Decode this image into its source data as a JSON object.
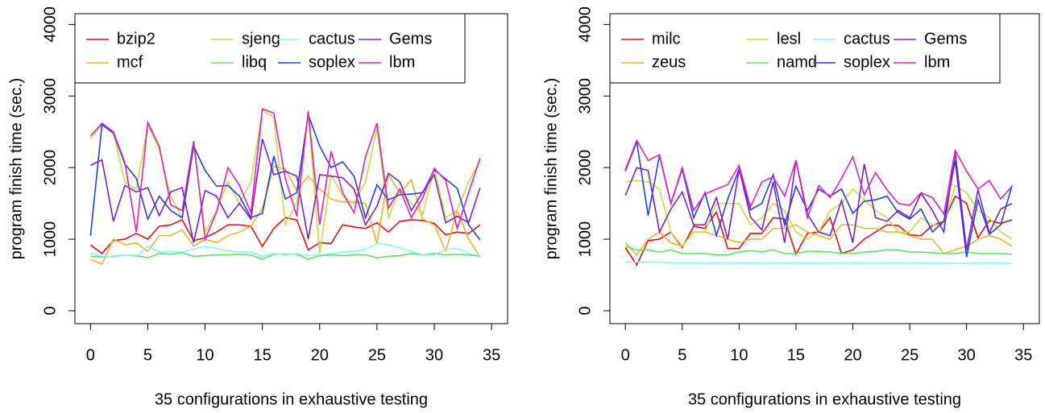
{
  "chart_data": [
    {
      "type": "line",
      "x_label": "35 configurations in exhaustive testing",
      "y_label": "program finish time (sec.)",
      "x": [
        0,
        1,
        2,
        3,
        4,
        5,
        6,
        7,
        8,
        9,
        10,
        11,
        12,
        13,
        14,
        15,
        16,
        17,
        18,
        19,
        20,
        21,
        22,
        23,
        24,
        25,
        26,
        27,
        28,
        29,
        30,
        31,
        32,
        33,
        34
      ],
      "xlim": [
        -1.36,
        36.4
      ],
      "ylim": [
        -180,
        4150
      ],
      "xticks": [
        0,
        5,
        10,
        15,
        20,
        25,
        30,
        35
      ],
      "yticks": [
        0,
        1000,
        2000,
        3000,
        4000
      ],
      "legend": "top-left",
      "series": [
        {
          "name": "bzip2",
          "color": "#e01010",
          "values": [
            920,
            800,
            980,
            1000,
            1080,
            1000,
            1180,
            1200,
            1270,
            980,
            1020,
            1100,
            1200,
            1200,
            1180,
            900,
            1150,
            1300,
            1270,
            850,
            950,
            940,
            1200,
            1170,
            1150,
            1230,
            1100,
            1250,
            1270,
            1260,
            1220,
            1060,
            1100,
            1080,
            1200
          ]
        },
        {
          "name": "mcf",
          "color": "#f0b030",
          "values": [
            720,
            650,
            1000,
            920,
            950,
            830,
            1050,
            1050,
            1130,
            900,
            1000,
            950,
            1050,
            1100,
            1180,
            1430,
            2020,
            1980,
            1680,
            1880,
            1700,
            1560,
            1520,
            1520,
            1500,
            940,
            1900,
            1640,
            1830,
            1280,
            1200,
            830,
            1400,
            1000,
            750
          ]
        },
        {
          "name": "sjeng",
          "color": "#c0e040",
          "values": [
            2400,
            2600,
            2480,
            1800,
            1700,
            2600,
            2250,
            1600,
            1300,
            2300,
            1100,
            1400,
            1800,
            1500,
            1800,
            2800,
            2700,
            1200,
            1500,
            2750,
            800,
            1900,
            1600,
            1500,
            1800,
            2550,
            1300,
            1700,
            1500,
            1350,
            2000,
            1300,
            1400,
            1800,
            2100
          ]
        },
        {
          "name": "libq",
          "color": "#60e060",
          "values": [
            760,
            750,
            760,
            780,
            770,
            740,
            800,
            790,
            810,
            760,
            770,
            780,
            780,
            790,
            780,
            720,
            790,
            790,
            790,
            720,
            770,
            780,
            770,
            780,
            780,
            740,
            760,
            770,
            800,
            780,
            800,
            780,
            790,
            780,
            760
          ]
        },
        {
          "name": "cactus",
          "color": "#80f8f8",
          "values": [
            800,
            760,
            750,
            780,
            760,
            900,
            820,
            830,
            820,
            860,
            900,
            870,
            840,
            820,
            820,
            760,
            800,
            780,
            800,
            770,
            780,
            800,
            820,
            830,
            860,
            940,
            920,
            880,
            830,
            780,
            780,
            860,
            870,
            800,
            770
          ]
        },
        {
          "name": "soplex",
          "color": "#2040e0",
          "values": [
            1050,
            2600,
            2480,
            2050,
            1850,
            1280,
            1600,
            1400,
            1300,
            2300,
            1960,
            1740,
            1750,
            1600,
            1300,
            1360,
            2160,
            1560,
            1650,
            2740,
            2300,
            2000,
            2080,
            1880,
            1300,
            1760,
            1550,
            1620,
            1630,
            1650,
            1970,
            1840,
            1710,
            1200,
            990
          ]
        },
        {
          "name": "Gems",
          "color": "#8020c0",
          "values": [
            2030,
            2110,
            1250,
            1750,
            1660,
            1720,
            1330,
            1660,
            1720,
            950,
            1680,
            1600,
            1300,
            1500,
            1280,
            2400,
            1900,
            1950,
            1880,
            1000,
            1900,
            1880,
            1860,
            1700,
            1200,
            1460,
            1920,
            1800,
            1400,
            1660,
            1900,
            1230,
            1320,
            1230,
            1720
          ]
        },
        {
          "name": "lbm",
          "color": "#e020c0",
          "values": [
            2440,
            2620,
            2500,
            2070,
            1100,
            2630,
            2300,
            1480,
            1400,
            2370,
            1000,
            1380,
            2000,
            1750,
            1370,
            2820,
            2760,
            1850,
            1320,
            2790,
            1200,
            2230,
            1650,
            1370,
            2150,
            2620,
            1430,
            1700,
            1300,
            1580,
            1990,
            1820,
            1150,
            1650,
            2130
          ]
        }
      ]
    },
    {
      "type": "line",
      "x_label": "35 configurations in exhaustive testing",
      "y_label": "program finish time (sec.)",
      "x": [
        0,
        1,
        2,
        3,
        4,
        5,
        6,
        7,
        8,
        9,
        10,
        11,
        12,
        13,
        14,
        15,
        16,
        17,
        18,
        19,
        20,
        21,
        22,
        23,
        24,
        25,
        26,
        27,
        28,
        29,
        30,
        31,
        32,
        33,
        34
      ],
      "xlim": [
        -1.36,
        36.4
      ],
      "ylim": [
        -180,
        4150
      ],
      "xticks": [
        0,
        5,
        10,
        15,
        20,
        25,
        30,
        35
      ],
      "yticks": [
        0,
        1000,
        2000,
        3000,
        4000
      ],
      "legend": "top-left",
      "series": [
        {
          "name": "milc",
          "color": "#e01010",
          "values": [
            880,
            640,
            980,
            1000,
            1100,
            880,
            1180,
            1150,
            1380,
            870,
            870,
            1080,
            1080,
            1300,
            1280,
            790,
            1080,
            1100,
            1300,
            800,
            850,
            1000,
            1100,
            1200,
            1190,
            1060,
            1050,
            1190,
            1250,
            1600,
            1500,
            1020,
            1260,
            1220,
            1270
          ]
        },
        {
          "name": "zeus",
          "color": "#f0b030",
          "values": [
            950,
            780,
            1000,
            1100,
            950,
            900,
            1100,
            1100,
            1050,
            1000,
            950,
            1000,
            1000,
            1150,
            1150,
            1200,
            1100,
            1050,
            1000,
            1200,
            1200,
            1150,
            1150,
            1100,
            1100,
            1050,
            1000,
            1000,
            800,
            850,
            900,
            1000,
            1050,
            1000,
            900
          ]
        },
        {
          "name": "lesl",
          "color": "#c0e040",
          "values": [
            1800,
            1820,
            1800,
            1700,
            1100,
            900,
            1100,
            1100,
            1500,
            1500,
            1500,
            1200,
            1300,
            1500,
            1400,
            1100,
            1000,
            1100,
            1400,
            1500,
            1700,
            1550,
            1400,
            1300,
            1100,
            1100,
            1300,
            1200,
            1200,
            1750,
            1650,
            1400,
            1300,
            1100,
            1000
          ]
        },
        {
          "name": "namd",
          "color": "#60e060",
          "values": [
            900,
            850,
            850,
            820,
            850,
            800,
            800,
            800,
            780,
            780,
            820,
            840,
            820,
            850,
            800,
            800,
            830,
            830,
            820,
            800,
            800,
            820,
            830,
            850,
            850,
            820,
            820,
            810,
            800,
            800,
            820,
            800,
            800,
            800,
            790
          ]
        },
        {
          "name": "cactus",
          "color": "#80f8f8",
          "values": [
            680,
            680,
            680,
            680,
            670,
            670,
            670,
            670,
            670,
            670,
            670,
            670,
            670,
            670,
            670,
            670,
            670,
            670,
            670,
            670,
            670,
            670,
            670,
            670,
            670,
            670,
            670,
            670,
            670,
            660,
            660,
            670,
            670,
            670,
            660
          ]
        },
        {
          "name": "soplex",
          "color": "#2040e0",
          "values": [
            1950,
            2360,
            1330,
            2170,
            1500,
            1980,
            1300,
            1650,
            1050,
            1560,
            1980,
            1410,
            1500,
            1900,
            1200,
            1740,
            1400,
            1700,
            1600,
            1700,
            1360,
            1530,
            1550,
            1600,
            1370,
            1280,
            1420,
            1100,
            1250,
            2100,
            750,
            1550,
            1070,
            1200,
            1750
          ]
        },
        {
          "name": "Gems",
          "color": "#8020c0",
          "values": [
            1610,
            2000,
            1960,
            1100,
            1420,
            1660,
            1200,
            1200,
            1580,
            1000,
            1980,
            1310,
            1130,
            1800,
            950,
            2100,
            1350,
            1100,
            1050,
            1540,
            950,
            2050,
            1300,
            1250,
            1400,
            1300,
            1640,
            1400,
            1100,
            2220,
            850,
            1690,
            1090,
            1420,
            1500
          ]
        },
        {
          "name": "lbm",
          "color": "#e020c0",
          "values": [
            1970,
            2380,
            2100,
            2180,
            1500,
            2000,
            1400,
            1630,
            1700,
            1760,
            2030,
            1450,
            1800,
            1870,
            1600,
            2100,
            1300,
            1750,
            1580,
            1850,
            2150,
            1620,
            1930,
            1690,
            1500,
            1470,
            1650,
            1580,
            1350,
            2240,
            1950,
            1700,
            1820,
            1560,
            1740
          ]
        }
      ]
    }
  ]
}
